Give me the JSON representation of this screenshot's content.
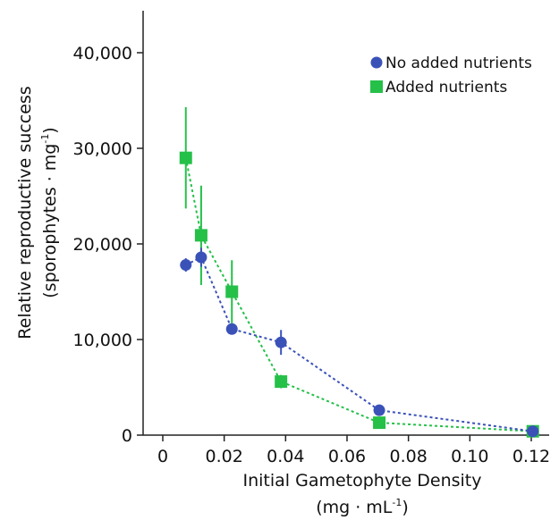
{
  "chart_data": {
    "type": "scatter",
    "xlabel": "Initial Gametophyte Density",
    "xunit_prefix": "(mg · mL",
    "xunit_sup": "-1",
    "xunit_suffix": ")",
    "ylabel_line1": "Relative reproductive success",
    "ylabel_line2_prefix": "(sporophytes · mg",
    "ylabel_line2_sup": "-1",
    "ylabel_line2_suffix": ")",
    "xlim": [
      -0.01,
      0.125
    ],
    "ylim": [
      0,
      45000
    ],
    "x_ticks": [
      0,
      0.02,
      0.04,
      0.06,
      0.08,
      0.1,
      0.12
    ],
    "x_tick_labels": [
      "0",
      "0.02",
      "0.04",
      "0.06",
      "0.08",
      "0.10",
      "0.12"
    ],
    "y_ticks": [
      0,
      10000,
      20000,
      30000,
      40000
    ],
    "y_tick_labels": [
      "0",
      "10,000",
      "20,000",
      "30,000",
      "40,000"
    ],
    "grid": false,
    "legend_position": "top-right",
    "series": [
      {
        "name": "No added nutrients",
        "color": "#3a52b8",
        "marker": "circle",
        "line": "dotted",
        "points": [
          {
            "x": 0.0075,
            "y": 17800,
            "err": 700
          },
          {
            "x": 0.0125,
            "y": 18600,
            "err": 1000
          },
          {
            "x": 0.0225,
            "y": 11100,
            "err": 500
          },
          {
            "x": 0.0385,
            "y": 9700,
            "err": 1300
          },
          {
            "x": 0.0705,
            "y": 2600,
            "err": 300
          },
          {
            "x": 0.1205,
            "y": 400,
            "err": 150
          }
        ]
      },
      {
        "name": "Added nutrients",
        "color": "#25c048",
        "marker": "square",
        "line": "dotted",
        "points": [
          {
            "x": 0.0075,
            "y": 29000,
            "err": 5300
          },
          {
            "x": 0.0125,
            "y": 20900,
            "err": 5200
          },
          {
            "x": 0.0225,
            "y": 15000,
            "err": 3300
          },
          {
            "x": 0.0385,
            "y": 5600,
            "err": 700
          },
          {
            "x": 0.0705,
            "y": 1300,
            "err": 300
          },
          {
            "x": 0.1205,
            "y": 400,
            "err": 150
          }
        ]
      }
    ]
  }
}
